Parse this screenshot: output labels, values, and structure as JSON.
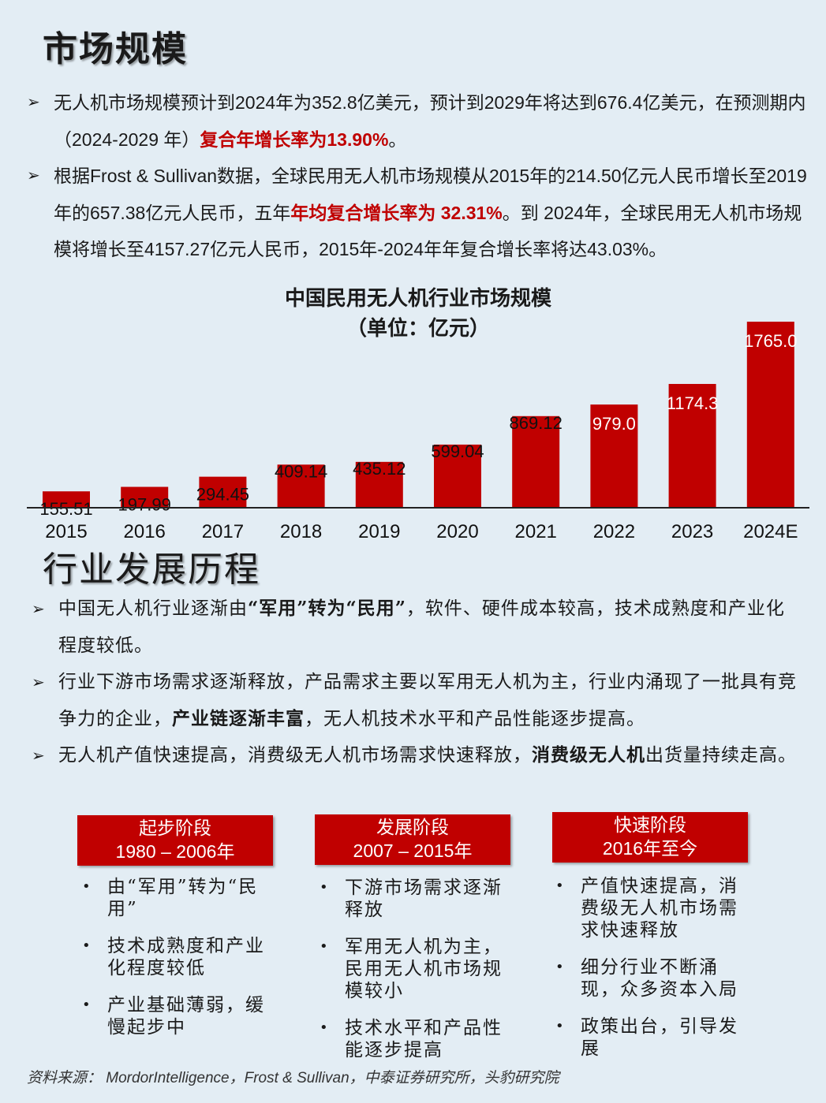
{
  "section1": {
    "title": "市场规模",
    "bullet1": {
      "p1": "无人机市场规模预计到2024年为352.8亿美元，预计到2029年将达到676.4亿美元，在预测期内（2024-2029 年）",
      "highlight": "复合年增长率为13.90%",
      "p2": "。"
    },
    "bullet2": {
      "p1": "根据Frost & Sullivan数据，全球民用无人机市场规模从2015年的214.50亿元人民币增长至2019年的657.38亿元人民币，五年",
      "highlight": "年均复合增长率为 32.31%",
      "p2": "。到 2024年，全球民用无人机市场规模将增长至4157.27亿元人民币，2015年-2024年年复合增长率将达43.03%。"
    }
  },
  "chart_data": {
    "type": "bar",
    "title": "中国民用无人机行业市场规模",
    "subtitle": "（单位：亿元）",
    "categories": [
      "2015",
      "2016",
      "2017",
      "2018",
      "2019",
      "2020",
      "2021",
      "2022",
      "2023",
      "2024E"
    ],
    "values": [
      155.51,
      197.99,
      294.45,
      409.14,
      435.12,
      599.04,
      869.12,
      979.0,
      1174.3,
      1765.0
    ],
    "labels": [
      "155.51",
      "197.99",
      "294.45",
      "409.14",
      "435.12",
      "599.04",
      "869.12",
      "979.0",
      "1174.3",
      "1765.0"
    ],
    "color": "#c00000",
    "grid": false,
    "legend": "none"
  },
  "section2": {
    "title": "行业发展历程",
    "bullet1": {
      "p1": "中国无人机行业逐渐由",
      "strong": "“军用”转为“民用”",
      "p2": "，软件、硬件成本较高，技术成熟度和产业化程度较低。"
    },
    "bullet2": {
      "p1": "行业下游市场需求逐渐释放，产品需求主要以军用无人机为主，行业内涌现了一批具有竞争力的企业，",
      "strong": "产业链逐渐丰富",
      "p2": "，无人机技术水平和产品性能逐步提高。"
    },
    "bullet3": {
      "p1": "无人机产值快速提高，消费级无人机市场需求快速释放，",
      "strong": "消费级无人机",
      "p2": "出货量持续走高。"
    }
  },
  "stages": [
    {
      "name": "起步阶段",
      "period": "1980 – 2006年",
      "items": [
        "由“军用”转为“民用”",
        "技术成熟度和产业化程度较低",
        "产业基础薄弱，缓慢起步中"
      ]
    },
    {
      "name": "发展阶段",
      "period": "2007 – 2015年",
      "items": [
        "下游市场需求逐渐释放",
        "军用无人机为主，民用无人机市场规模较小",
        "技术水平和产品性能逐步提高"
      ]
    },
    {
      "name": "快速阶段",
      "period": "2016年至今",
      "items": [
        "产值快速提高，消费级无人机市场需求快速释放",
        "细分行业不断涌现，众多资本入局",
        "政策出台，引导发展"
      ]
    }
  ],
  "source": "资料来源： MordorIntelligence，Frost & Sullivan，中泰证券研究所，头豹研究院",
  "icons": {
    "bullet": "arrow-bullet-icon"
  }
}
